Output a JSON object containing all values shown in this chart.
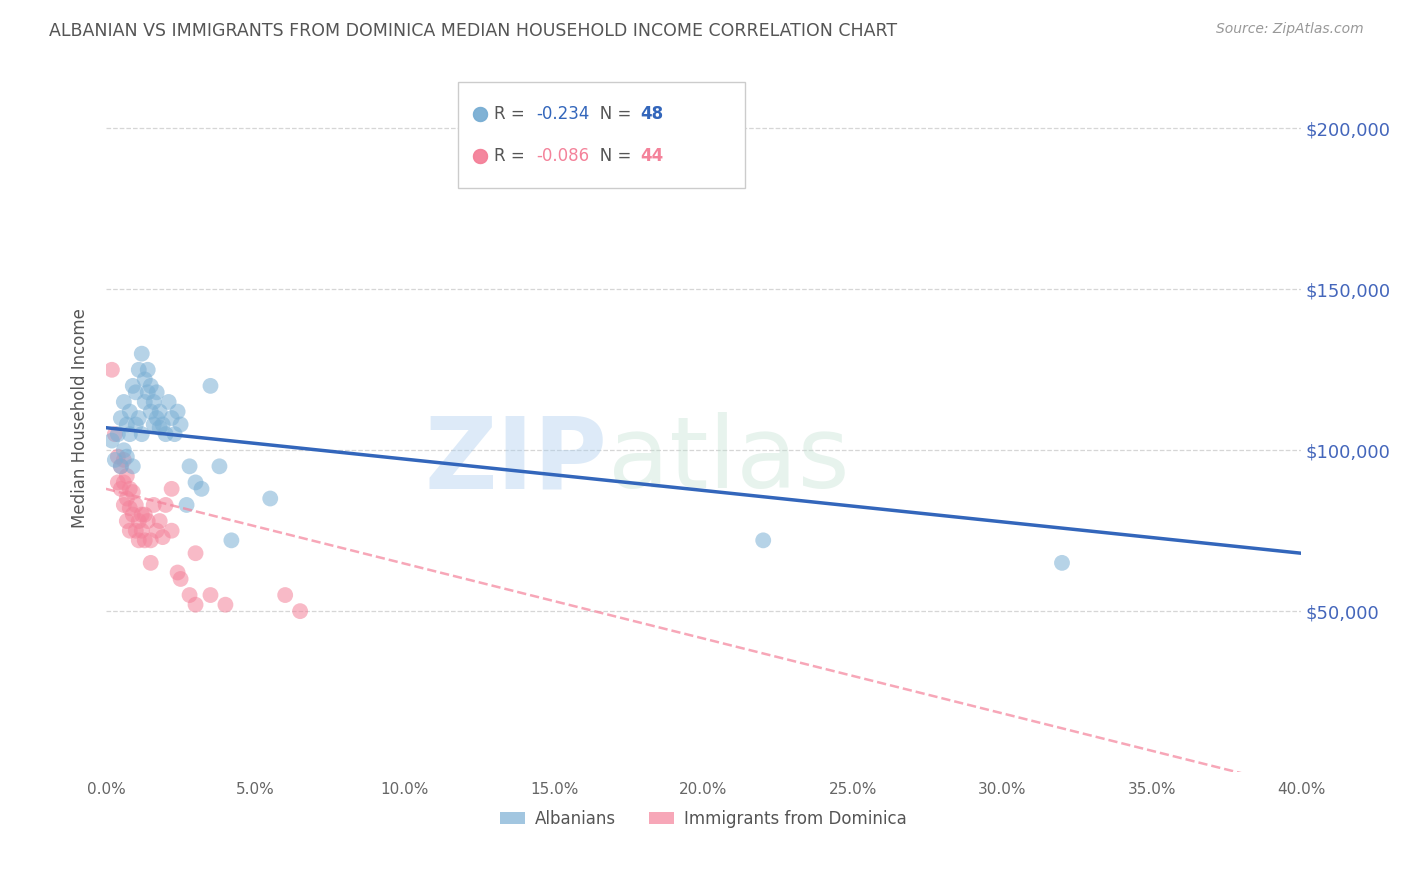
{
  "title": "ALBANIAN VS IMMIGRANTS FROM DOMINICA MEDIAN HOUSEHOLD INCOME CORRELATION CHART",
  "source": "Source: ZipAtlas.com",
  "ylabel_label": "Median Household Income",
  "x_min": 0.0,
  "x_max": 0.4,
  "y_min": 0,
  "y_max": 220000,
  "y_ticks": [
    50000,
    100000,
    150000,
    200000
  ],
  "x_ticks": [
    0.0,
    0.05,
    0.1,
    0.15,
    0.2,
    0.25,
    0.3,
    0.35,
    0.4
  ],
  "blue_R": -0.234,
  "blue_N": 48,
  "pink_R": -0.086,
  "pink_N": 44,
  "blue_color": "#7BAFD4",
  "pink_color": "#F4829A",
  "blue_line_color": "#3366BB",
  "pink_line_color": "#F4829A",
  "watermark_zip": "ZIP",
  "watermark_atlas": "atlas",
  "blue_scatter_x": [
    0.002,
    0.003,
    0.004,
    0.005,
    0.005,
    0.006,
    0.006,
    0.007,
    0.007,
    0.008,
    0.008,
    0.009,
    0.009,
    0.01,
    0.01,
    0.011,
    0.011,
    0.012,
    0.012,
    0.013,
    0.013,
    0.014,
    0.014,
    0.015,
    0.015,
    0.016,
    0.016,
    0.017,
    0.017,
    0.018,
    0.018,
    0.019,
    0.02,
    0.021,
    0.022,
    0.023,
    0.024,
    0.025,
    0.027,
    0.028,
    0.03,
    0.032,
    0.035,
    0.038,
    0.042,
    0.055,
    0.22,
    0.32
  ],
  "blue_scatter_y": [
    103000,
    97000,
    105000,
    95000,
    110000,
    100000,
    115000,
    108000,
    98000,
    112000,
    105000,
    120000,
    95000,
    118000,
    108000,
    125000,
    110000,
    130000,
    105000,
    122000,
    115000,
    125000,
    118000,
    120000,
    112000,
    115000,
    108000,
    118000,
    110000,
    112000,
    107000,
    108000,
    105000,
    115000,
    110000,
    105000,
    112000,
    108000,
    83000,
    95000,
    90000,
    88000,
    120000,
    95000,
    72000,
    85000,
    72000,
    65000
  ],
  "pink_scatter_x": [
    0.002,
    0.003,
    0.004,
    0.004,
    0.005,
    0.005,
    0.006,
    0.006,
    0.006,
    0.007,
    0.007,
    0.007,
    0.008,
    0.008,
    0.008,
    0.009,
    0.009,
    0.01,
    0.01,
    0.011,
    0.011,
    0.012,
    0.012,
    0.013,
    0.013,
    0.014,
    0.015,
    0.015,
    0.016,
    0.017,
    0.018,
    0.019,
    0.02,
    0.022,
    0.022,
    0.024,
    0.025,
    0.028,
    0.03,
    0.03,
    0.035,
    0.04,
    0.06,
    0.065
  ],
  "pink_scatter_y": [
    125000,
    105000,
    90000,
    98000,
    88000,
    95000,
    83000,
    90000,
    97000,
    85000,
    78000,
    92000,
    82000,
    75000,
    88000,
    80000,
    87000,
    75000,
    83000,
    78000,
    72000,
    80000,
    75000,
    72000,
    80000,
    78000,
    72000,
    65000,
    83000,
    75000,
    78000,
    73000,
    83000,
    75000,
    88000,
    62000,
    60000,
    55000,
    68000,
    52000,
    55000,
    52000,
    55000,
    50000
  ],
  "legend_label_blue": "Albanians",
  "legend_label_pink": "Immigrants from Dominica",
  "background_color": "#FFFFFF",
  "grid_color": "#CCCCCC",
  "title_color": "#555555",
  "axis_label_color": "#555555",
  "right_tick_color": "#4466BB"
}
